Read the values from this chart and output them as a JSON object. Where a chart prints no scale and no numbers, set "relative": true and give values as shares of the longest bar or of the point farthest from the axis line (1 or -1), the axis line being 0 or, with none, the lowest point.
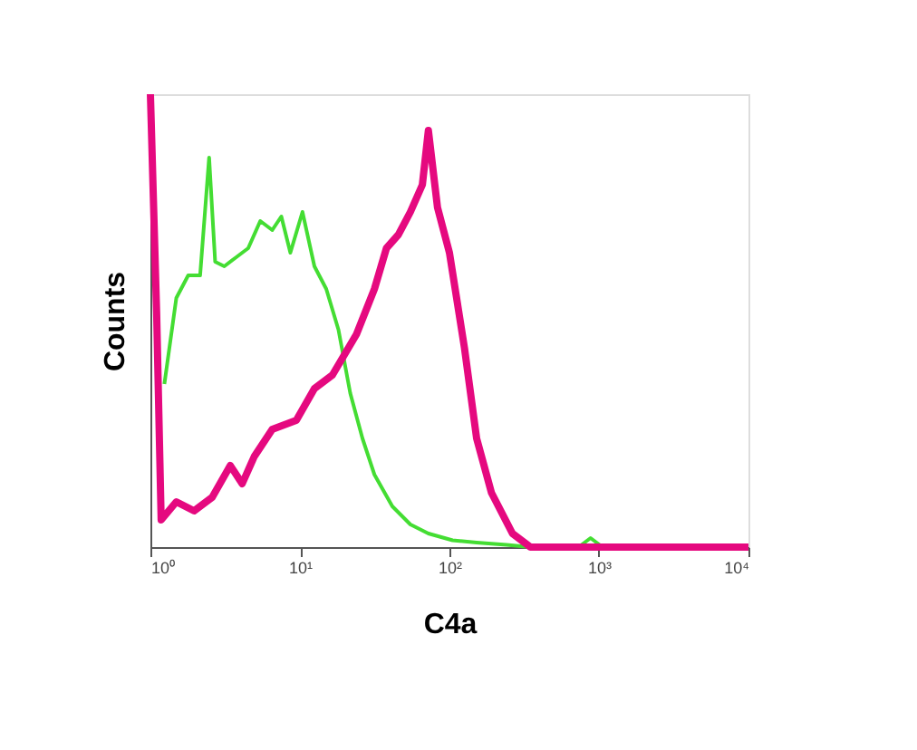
{
  "chart_data": {
    "type": "line",
    "xlabel": "C4a",
    "ylabel": "Counts",
    "relative": true,
    "log": "x",
    "xlim": [
      1,
      10000
    ],
    "xticks": [
      {
        "value": 1,
        "label": "10⁰"
      },
      {
        "value": 10,
        "label": "10¹"
      },
      {
        "value": 100,
        "label": "10²"
      },
      {
        "value": 1000,
        "label": "10³"
      },
      {
        "value": 10000,
        "label": "10⁴"
      }
    ],
    "marker": "none",
    "line_style": "solid",
    "series": [
      {
        "color": "#44dd33",
        "x": [
          1.24,
          1.49,
          1.79,
          2.15,
          2.47,
          2.71,
          3.12,
          3.75,
          4.51,
          5.43,
          6.53,
          7.51,
          8.63,
          10.4,
          12.5,
          15.0,
          18.1,
          21.7,
          26.2,
          31.5,
          41.5,
          54.8,
          72.3,
          105,
          152,
          241,
          348,
          730,
          879,
          1057,
          10000
        ],
        "values": [
          0.36,
          0.55,
          0.6,
          0.6,
          0.86,
          0.63,
          0.62,
          0.64,
          0.66,
          0.72,
          0.7,
          0.73,
          0.65,
          0.74,
          0.62,
          0.57,
          0.48,
          0.34,
          0.24,
          0.16,
          0.09,
          0.05,
          0.03,
          0.015,
          0.01,
          0.005,
          0,
          0,
          0.02,
          0,
          0
        ]
      },
      {
        "color": "#e5097f",
        "x": [
          1,
          1.1,
          1.18,
          1.49,
          1.96,
          2.59,
          3.42,
          4.11,
          4.95,
          6.53,
          9.46,
          12.5,
          16.5,
          23.9,
          31.5,
          37.9,
          45.6,
          54.8,
          65.9,
          72.3,
          83.2,
          100,
          126,
          152,
          191,
          264,
          348,
          10000
        ],
        "values": [
          1,
          0.52,
          0.06,
          0.1,
          0.08,
          0.11,
          0.18,
          0.14,
          0.2,
          0.26,
          0.28,
          0.35,
          0.38,
          0.47,
          0.57,
          0.66,
          0.69,
          0.74,
          0.8,
          0.92,
          0.75,
          0.65,
          0.44,
          0.24,
          0.12,
          0.03,
          0,
          0
        ]
      }
    ]
  }
}
